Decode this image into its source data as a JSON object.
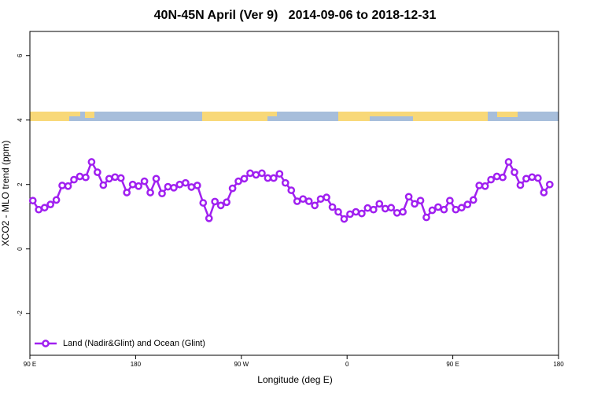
{
  "chart_data": {
    "type": "line",
    "title": "40N-45N April (Ver 9)   2014-09-06 to 2018-12-31",
    "x_label": "Longitude (deg E)",
    "y_label": "XCO2 - MLO trend (ppm)",
    "xlim": [
      90,
      540
    ],
    "ylim": [
      -3.3,
      6.75
    ],
    "xticks": [
      {
        "value": 90,
        "label": "90 E"
      },
      180,
      {
        "value": 270,
        "label": "90 W"
      },
      {
        "value": 360,
        "label": "0"
      },
      {
        "value": 450,
        "label": "90 E"
      },
      {
        "value": 540,
        "label": "180"
      }
    ],
    "yticks": [
      -2,
      0,
      2,
      4,
      6
    ],
    "legend_position": "bottom-left",
    "x": [
      92.5,
      97.5,
      102.5,
      107.5,
      112.5,
      117.5,
      122.5,
      127.5,
      132.5,
      137.5,
      142.5,
      147.5,
      152.5,
      157.5,
      162.5,
      167.5,
      172.5,
      177.5,
      182.5,
      187.5,
      192.5,
      197.5,
      202.5,
      207.5,
      212.5,
      217.5,
      222.5,
      227.5,
      232.5,
      237.5,
      242.5,
      247.5,
      252.5,
      257.5,
      262.5,
      267.5,
      272.5,
      277.5,
      282.5,
      287.5,
      292.5,
      297.5,
      302.5,
      307.5,
      312.5,
      317.5,
      322.5,
      327.5,
      332.5,
      337.5,
      342.5,
      347.5,
      352.5,
      357.5,
      362.5,
      367.5,
      372.5,
      377.5,
      382.5,
      387.5,
      392.5,
      397.5,
      402.5,
      407.5,
      412.5,
      417.5,
      422.5,
      427.5,
      432.5,
      437.5,
      442.5,
      447.5,
      452.5,
      457.5,
      462.5,
      467.5,
      472.5,
      477.5,
      482.5,
      487.5,
      492.5,
      497.5,
      502.5,
      507.5,
      512.5,
      517.5,
      522.5,
      527.5,
      532.5
    ],
    "series": [
      {
        "name": "Land (Nadir&Glint) and Ocean (Glint)",
        "color": "#a020f0",
        "values": [
          1.5,
          1.22,
          1.28,
          1.38,
          1.52,
          1.97,
          1.95,
          2.15,
          2.25,
          2.22,
          2.7,
          2.38,
          1.98,
          2.18,
          2.23,
          2.2,
          1.75,
          2.0,
          1.95,
          2.1,
          1.75,
          2.18,
          1.72,
          1.93,
          1.9,
          2.0,
          2.05,
          1.92,
          1.97,
          1.43,
          0.95,
          1.47,
          1.35,
          1.45,
          1.88,
          2.1,
          2.18,
          2.35,
          2.3,
          2.35,
          2.2,
          2.2,
          2.33,
          2.05,
          1.82,
          1.48,
          1.55,
          1.48,
          1.35,
          1.55,
          1.6,
          1.3,
          1.15,
          0.93,
          1.08,
          1.15,
          1.1,
          1.27,
          1.22,
          1.4,
          1.25,
          1.28,
          1.12,
          1.15,
          1.62,
          1.4,
          1.5,
          0.98,
          1.2,
          1.3,
          1.22,
          1.5,
          1.22,
          1.28,
          1.38,
          1.52,
          1.97,
          1.95,
          2.15,
          2.25,
          2.22,
          2.7,
          2.38,
          1.98,
          2.18,
          2.23,
          2.2,
          1.75,
          2.0
        ]
      }
    ]
  }
}
